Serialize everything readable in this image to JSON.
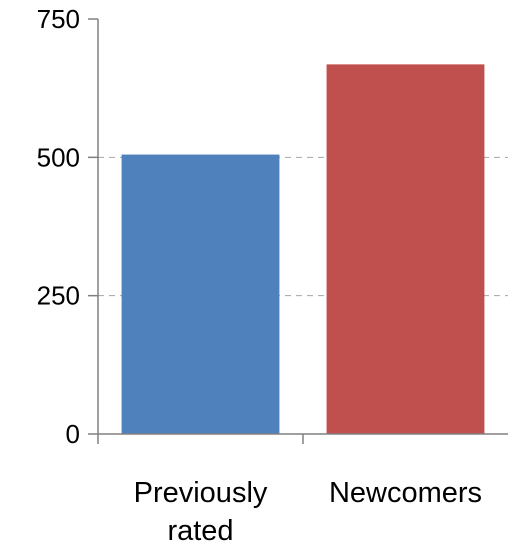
{
  "chart_data": {
    "type": "bar",
    "title": "",
    "xlabel": "",
    "ylabel": "",
    "categories": [
      [
        "Previously",
        "rated"
      ],
      [
        "Newcomers"
      ]
    ],
    "values": [
      505,
      668
    ],
    "ylim": [
      0,
      750
    ],
    "yticks": [
      "0",
      "250",
      "500",
      "750"
    ],
    "bar_colors": [
      "#4f81bd",
      "#c0504d"
    ],
    "grid": true,
    "legend": "none"
  }
}
